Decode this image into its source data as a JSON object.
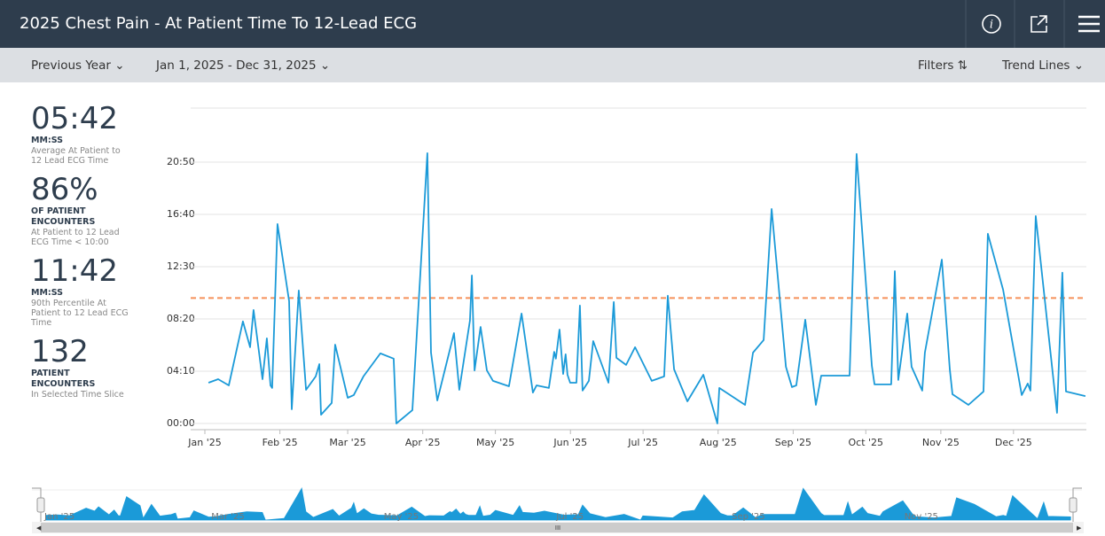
{
  "header": {
    "title": "2025 Chest Pain - At Patient Time To 12-Lead ECG"
  },
  "toolbar": {
    "period": "Previous Year",
    "range": "Jan 1, 2025  -  Dec 31, 2025",
    "filters": "Filters",
    "trend": "Trend Lines"
  },
  "kpis": [
    {
      "value": "05:42",
      "unit": "MM:SS",
      "caption": "Average At Patient to 12 Lead ECG Time"
    },
    {
      "value": "86%",
      "unit": "OF PATIENT ENCOUNTERS",
      "caption": "At Patient to 12 Lead ECG Time < 10:00"
    },
    {
      "value": "11:42",
      "unit": "MM:SS",
      "caption": "90th Percentile At Patient to 12 Lead ECG Time"
    },
    {
      "value": "132",
      "unit": "PATIENT ENCOUNTERS",
      "caption": "In Selected Time Slice"
    }
  ],
  "chart_data": {
    "type": "line",
    "color": "#1b9ad8",
    "x": [
      1.5,
      5.5,
      9.9,
      15.7,
      18.7,
      20.1,
      23.8,
      25.6,
      27.1,
      27.8,
      30,
      34.8,
      35.9,
      38.8,
      41.8,
      45.8,
      47.3,
      48,
      52.4,
      53.8,
      59,
      61.5,
      65.5,
      72.5,
      78,
      79.1,
      85.7,
      91.9,
      93.4,
      96,
      102.9,
      105.1,
      109.5,
      110.3,
      111.4,
      113.9,
      116.5,
      119,
      125.6,
      130.8,
      135.5,
      137,
      142.1,
      144.3,
      145,
      146.5,
      148,
      149,
      149.8,
      150.9,
      153.5,
      154.9,
      156,
      158.6,
      160.4,
      166.7,
      168.9,
      170,
      174,
      177.7,
      184.6,
      189.7,
      191.2,
      193.8,
      199.3,
      205.9,
      211.7,
      212.5,
      223.1,
      226.4,
      230.8,
      234.1,
      240,
      242.5,
      244.3,
      248,
      252.4,
      254.6,
      266.3,
      269.2,
      275.5,
      276.6,
      283.5,
      285,
      286.4,
      290.1,
      291.9,
      296.3,
      297.4,
      304.4,
      307.7,
      308.8,
      315.4,
      321.6,
      323.4,
      329.7,
      337.4,
      339.9,
      341,
      343.2,
      352,
      354.2,
      355.7,
      363.7
    ],
    "values": [
      195,
      212,
      182,
      488,
      365,
      543,
      212,
      407,
      182,
      170,
      954,
      585,
      68,
      636,
      161,
      225,
      284,
      42,
      98,
      377,
      123,
      136,
      225,
      335,
      310,
      0,
      64,
      1293,
      339,
      110,
      432,
      161,
      492,
      708,
      254,
      462,
      254,
      204,
      178,
      526,
      148,
      182,
      170,
      343,
      310,
      449,
      237,
      331,
      233,
      195,
      195,
      564,
      157,
      204,
      394,
      195,
      581,
      314,
      280,
      365,
      204,
      225,
      611,
      259,
      106,
      233,
      0,
      170,
      89,
      339,
      399,
      1026,
      271,
      174,
      182,
      496,
      89,
      229,
      229,
      1289,
      276,
      187,
      187,
      729,
      208,
      526,
      271,
      157,
      339,
      784,
      259,
      140,
      89,
      153,
      907,
      640,
      136,
      191,
      157,
      992,
      51,
      721,
      153,
      131
    ],
    "xlim": [
      0,
      364
    ],
    "xticks": [
      {
        "value": 0,
        "label": "Jan '25"
      },
      {
        "value": 31,
        "label": "Feb '25"
      },
      {
        "value": 59,
        "label": "Mar '25"
      },
      {
        "value": 90,
        "label": "Apr '25"
      },
      {
        "value": 120,
        "label": "May '25"
      },
      {
        "value": 151,
        "label": "Jun '25"
      },
      {
        "value": 181,
        "label": "Jul '25"
      },
      {
        "value": 212,
        "label": "Aug '25"
      },
      {
        "value": 243,
        "label": "Sep '25"
      },
      {
        "value": 273,
        "label": "Oct '25"
      },
      {
        "value": 304,
        "label": "Nov '25"
      },
      {
        "value": 334,
        "label": "Dec '25"
      }
    ],
    "ylim": [
      0,
      1500
    ],
    "yticks": [
      {
        "value": 0,
        "label": "00:00"
      },
      {
        "value": 250,
        "label": "04:10"
      },
      {
        "value": 500,
        "label": "08:20"
      },
      {
        "value": 750,
        "label": "12:30"
      },
      {
        "value": 1000,
        "label": "16:40"
      },
      {
        "value": 1250,
        "label": "20:50"
      }
    ],
    "grid": true,
    "reference_line": {
      "value": 600,
      "color": "#f5915a"
    }
  }
}
